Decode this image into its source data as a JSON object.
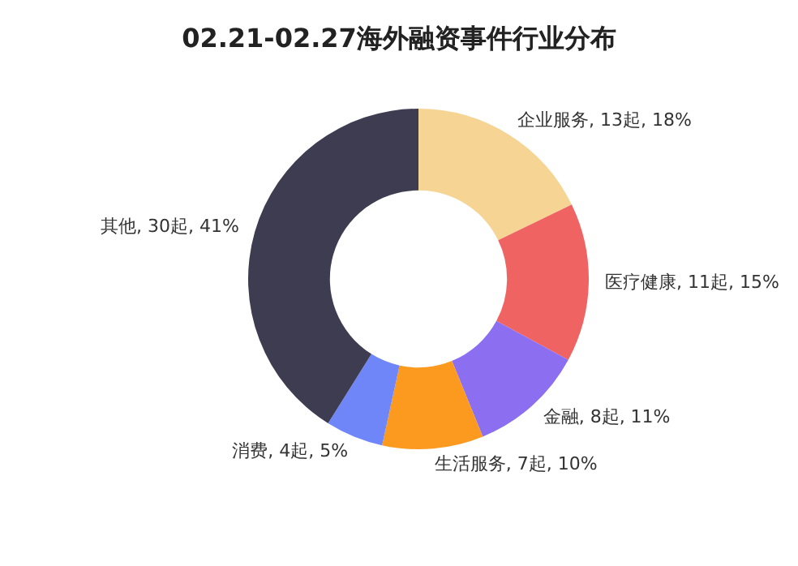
{
  "chart_data": {
    "type": "donut",
    "title": "02.21-02.27海外融资事件行业分布",
    "categories": [
      "企业服务",
      "医疗健康",
      "金融",
      "生活服务",
      "消费",
      "其他"
    ],
    "values": [
      13,
      11,
      8,
      7,
      4,
      30
    ],
    "value_labels": [
      "13起, 18%",
      "11起, 15%",
      "8起, 11%",
      "7起, 10%",
      "4起, 5%",
      "30起, 41%"
    ],
    "colors": [
      "#f5d494",
      "#ef6363",
      "#8b6ff0",
      "#fb9a1e",
      "#6e86f7",
      "#3e3c50"
    ],
    "legend": false
  }
}
